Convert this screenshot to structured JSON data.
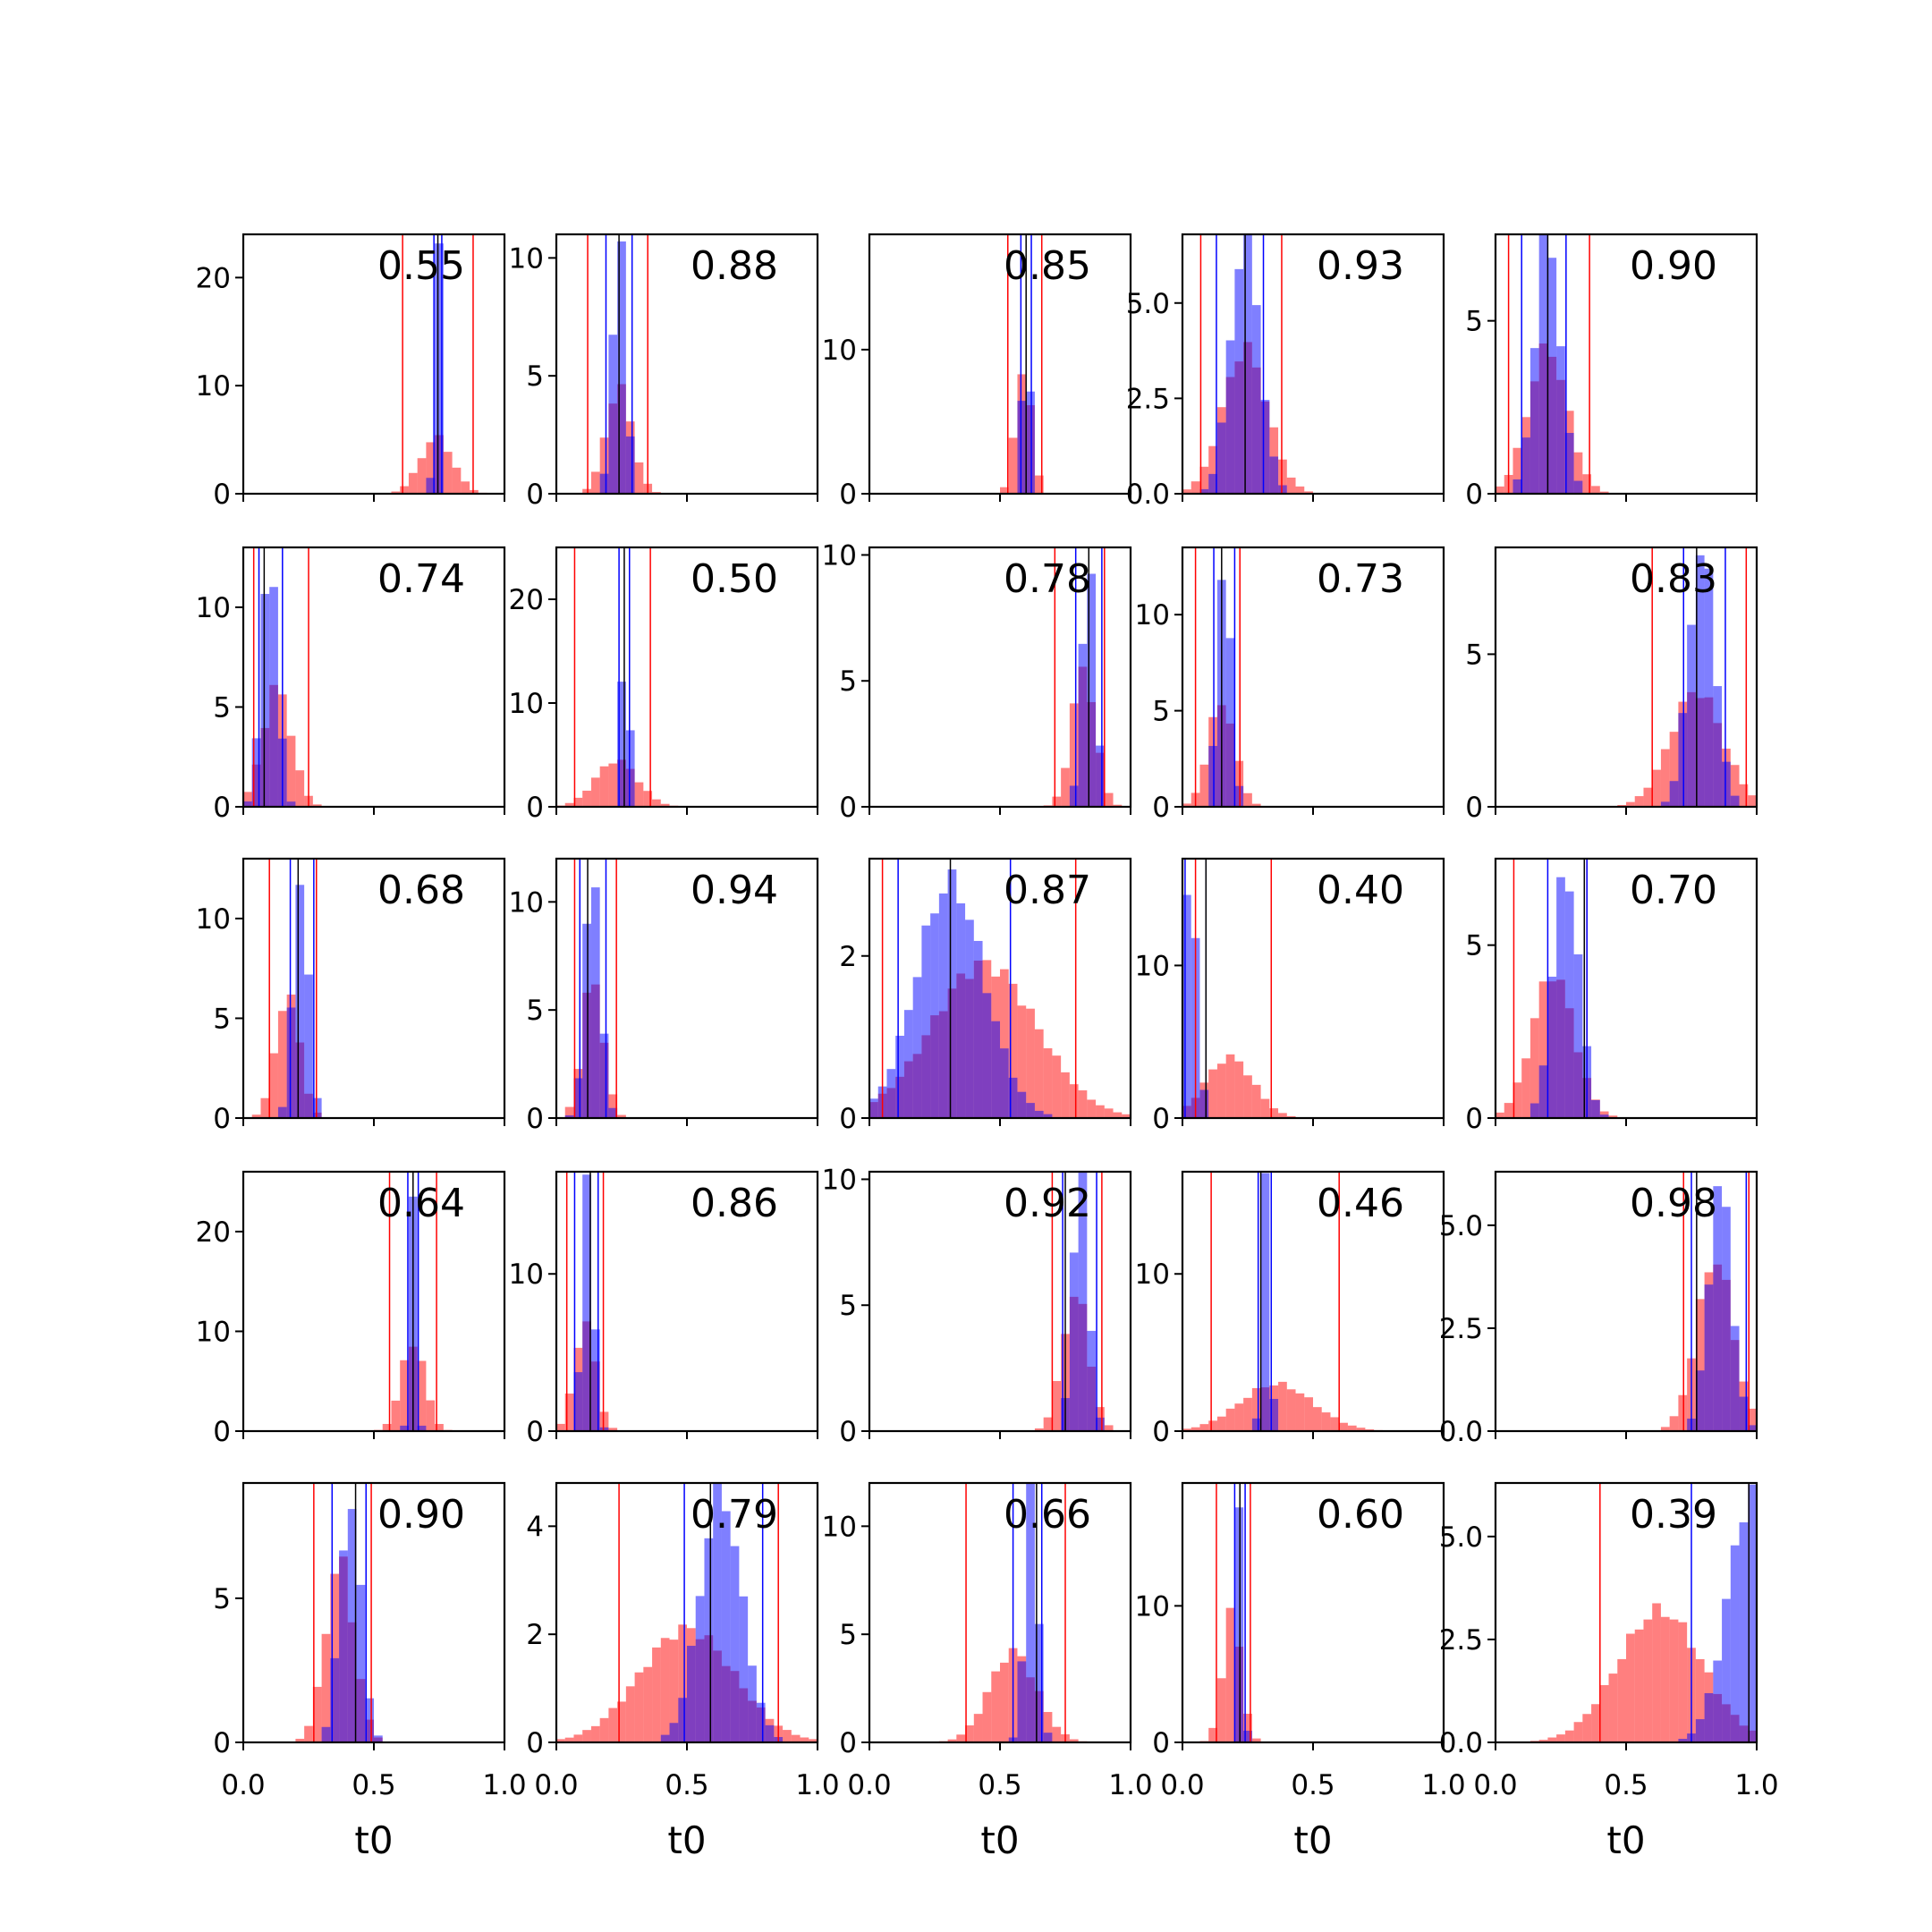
{
  "chart_data": {
    "type": "histogram-grid",
    "rows": 5,
    "cols": 5,
    "xlim": [
      0,
      1
    ],
    "x_ticks": [
      "0.0",
      "0.5",
      "1.0"
    ],
    "xlabel": "t0",
    "colors": {
      "red": "#ff0000",
      "blue": "#0000ff",
      "median": "#000000"
    },
    "panels": [
      {
        "label": "0.55",
        "ymax": 24,
        "yticks": [
          "0",
          "10",
          "20"
        ],
        "yvals": [
          0,
          10,
          20
        ],
        "red": {
          "mean": 0.74,
          "sd": 0.062,
          "peak": 5.2,
          "ci": [
            0.61,
            0.88
          ]
        },
        "blue": {
          "mean": 0.745,
          "sd": 0.012,
          "peak": 24,
          "ci": [
            0.73,
            0.76
          ]
        },
        "median": 0.745
      },
      {
        "label": "0.88",
        "ymax": 11,
        "yticks": [
          "0",
          "5",
          "10"
        ],
        "yvals": [
          0,
          5,
          10
        ],
        "red": {
          "mean": 0.24,
          "sd": 0.05,
          "peak": 4.5,
          "ci": [
            0.12,
            0.35
          ]
        },
        "blue": {
          "mean": 0.24,
          "sd": 0.025,
          "peak": 11,
          "ci": [
            0.19,
            0.29
          ]
        },
        "median": 0.24
      },
      {
        "label": "0.85",
        "ymax": 18,
        "yticks": [
          "0",
          "10"
        ],
        "yvals": [
          0,
          10
        ],
        "red": {
          "mean": 0.59,
          "sd": 0.03,
          "peak": 9,
          "ci": [
            0.53,
            0.66
          ]
        },
        "blue": {
          "mean": 0.6,
          "sd": 0.012,
          "peak": 18,
          "ci": [
            0.58,
            0.62
          ]
        },
        "median": 0.6
      },
      {
        "label": "0.93",
        "ymax": 6.8,
        "yticks": [
          "0.0",
          "2.5",
          "5.0"
        ],
        "yvals": [
          0,
          2.5,
          5
        ],
        "red": {
          "mean": 0.24,
          "sd": 0.085,
          "peak": 3.8,
          "ci": [
            0.07,
            0.38
          ]
        },
        "blue": {
          "mean": 0.24,
          "sd": 0.055,
          "peak": 6.8,
          "ci": [
            0.13,
            0.31
          ]
        },
        "median": 0.24
      },
      {
        "label": "0.90",
        "ymax": 7.5,
        "yticks": [
          "0",
          "5"
        ],
        "yvals": [
          0,
          5
        ],
        "red": {
          "mean": 0.2,
          "sd": 0.075,
          "peak": 4.2,
          "ci": [
            0.05,
            0.36
          ]
        },
        "blue": {
          "mean": 0.2,
          "sd": 0.048,
          "peak": 7.5,
          "ci": [
            0.1,
            0.27
          ]
        },
        "median": 0.2
      },
      {
        "label": "0.74",
        "ymax": 13,
        "yticks": [
          "0",
          "5",
          "10"
        ],
        "yvals": [
          0,
          5,
          10
        ],
        "red": {
          "mean": 0.13,
          "sd": 0.055,
          "peak": 6,
          "ci": [
            0.04,
            0.25
          ]
        },
        "blue": {
          "mean": 0.1,
          "sd": 0.03,
          "peak": 13,
          "ci": [
            0.06,
            0.15
          ]
        },
        "median": 0.08
      },
      {
        "label": "0.50",
        "ymax": 25,
        "yticks": [
          "0",
          "10",
          "20"
        ],
        "yvals": [
          0,
          10,
          20
        ],
        "red": {
          "mean": 0.23,
          "sd": 0.08,
          "peak": 4.5,
          "ci": [
            0.07,
            0.36
          ]
        },
        "blue": {
          "mean": 0.265,
          "sd": 0.012,
          "peak": 25,
          "ci": [
            0.24,
            0.28
          ]
        },
        "median": 0.26
      },
      {
        "label": "0.78",
        "ymax": 10.3,
        "yticks": [
          "0",
          "5",
          "10"
        ],
        "yvals": [
          0,
          5,
          10
        ],
        "red": {
          "mean": 0.82,
          "sd": 0.045,
          "peak": 5.5,
          "ci": [
            0.71,
            0.9
          ]
        },
        "blue": {
          "mean": 0.84,
          "sd": 0.025,
          "peak": 10.3,
          "ci": [
            0.79,
            0.89
          ]
        },
        "median": 0.84
      },
      {
        "label": "0.73",
        "ymax": 13.5,
        "yticks": [
          "0",
          "5",
          "10"
        ],
        "yvals": [
          0,
          5,
          10
        ],
        "red": {
          "mean": 0.15,
          "sd": 0.05,
          "peak": 5.5,
          "ci": [
            0.05,
            0.22
          ]
        },
        "blue": {
          "mean": 0.16,
          "sd": 0.025,
          "peak": 13.5,
          "ci": [
            0.12,
            0.2
          ]
        },
        "median": 0.15
      },
      {
        "label": "0.83",
        "ymax": 8.5,
        "yticks": [
          "0",
          "5"
        ],
        "yvals": [
          0,
          5
        ],
        "red": {
          "mean": 0.77,
          "sd": 0.1,
          "peak": 3.8,
          "ci": [
            0.6,
            0.96
          ]
        },
        "blue": {
          "mean": 0.79,
          "sd": 0.05,
          "peak": 8.5,
          "ci": [
            0.72,
            0.88
          ]
        },
        "median": 0.77
      },
      {
        "label": "0.68",
        "ymax": 13,
        "yticks": [
          "0",
          "5",
          "10"
        ],
        "yvals": [
          0,
          5,
          10
        ],
        "red": {
          "mean": 0.17,
          "sd": 0.045,
          "peak": 6.3,
          "ci": [
            0.1,
            0.28
          ]
        },
        "blue": {
          "mean": 0.22,
          "sd": 0.028,
          "peak": 12.5,
          "ci": [
            0.18,
            0.27
          ]
        },
        "median": 0.21
      },
      {
        "label": "0.94",
        "ymax": 12,
        "yticks": [
          "0",
          "5",
          "10"
        ],
        "yvals": [
          0,
          5,
          10
        ],
        "red": {
          "mean": 0.14,
          "sd": 0.04,
          "peak": 6.5,
          "ci": [
            0.07,
            0.23
          ]
        },
        "blue": {
          "mean": 0.14,
          "sd": 0.03,
          "peak": 11.5,
          "ci": [
            0.09,
            0.19
          ]
        },
        "median": 0.12
      },
      {
        "label": "0.87",
        "ymax": 3.2,
        "yticks": [
          "0",
          "2"
        ],
        "yvals": [
          0,
          2
        ],
        "red": {
          "mean": 0.44,
          "sd": 0.2,
          "peak": 1.9,
          "ci": [
            0.05,
            0.79
          ]
        },
        "blue": {
          "mean": 0.31,
          "sd": 0.13,
          "peak": 2.9,
          "ci": [
            0.11,
            0.54
          ]
        },
        "median": 0.31
      },
      {
        "label": "0.40",
        "ymax": 17,
        "yticks": [
          "0",
          "10"
        ],
        "yvals": [
          0,
          10
        ],
        "red": {
          "mean": 0.18,
          "sd": 0.09,
          "peak": 4,
          "ci": [
            0.05,
            0.34
          ]
        },
        "blue": {
          "mean": 0.03,
          "sd": 0.025,
          "peak": 17,
          "ci": [
            0.01,
            0.09
          ]
        },
        "median": 0.09
      },
      {
        "label": "0.70",
        "ymax": 7.5,
        "yticks": [
          "0",
          "5"
        ],
        "yvals": [
          0,
          5
        ],
        "red": {
          "mean": 0.22,
          "sd": 0.08,
          "peak": 4.2,
          "ci": [
            0.07,
            0.35
          ]
        },
        "blue": {
          "mean": 0.27,
          "sd": 0.05,
          "peak": 7.2,
          "ci": [
            0.2,
            0.35
          ]
        },
        "median": 0.34
      },
      {
        "label": "0.64",
        "ymax": 26,
        "yticks": [
          "0",
          "10",
          "20"
        ],
        "yvals": [
          0,
          10,
          20
        ],
        "red": {
          "mean": 0.65,
          "sd": 0.045,
          "peak": 9,
          "ci": [
            0.56,
            0.74
          ]
        },
        "blue": {
          "mean": 0.65,
          "sd": 0.012,
          "peak": 25,
          "ci": [
            0.63,
            0.67
          ]
        },
        "median": 0.65
      },
      {
        "label": "0.86",
        "ymax": 16.5,
        "yticks": [
          "0",
          "10"
        ],
        "yvals": [
          0,
          10
        ],
        "red": {
          "mean": 0.11,
          "sd": 0.04,
          "peak": 7,
          "ci": [
            0.04,
            0.18
          ]
        },
        "blue": {
          "mean": 0.12,
          "sd": 0.022,
          "peak": 16,
          "ci": [
            0.07,
            0.16
          ]
        },
        "median": 0.13
      },
      {
        "label": "0.92",
        "ymax": 10.3,
        "yticks": [
          "0",
          "5",
          "10"
        ],
        "yvals": [
          0,
          5,
          10
        ],
        "red": {
          "mean": 0.79,
          "sd": 0.05,
          "peak": 5.5,
          "ci": [
            0.7,
            0.89
          ]
        },
        "blue": {
          "mean": 0.81,
          "sd": 0.03,
          "peak": 10.3,
          "ci": [
            0.74,
            0.87
          ]
        },
        "median": 0.75
      },
      {
        "label": "0.46",
        "ymax": 16.5,
        "yticks": [
          "0",
          "10"
        ],
        "yvals": [
          0,
          10
        ],
        "red": {
          "mean": 0.36,
          "sd": 0.14,
          "peak": 3,
          "ci": [
            0.11,
            0.6
          ]
        },
        "blue": {
          "mean": 0.32,
          "sd": 0.015,
          "peak": 16,
          "ci": [
            0.29,
            0.34
          ]
        },
        "median": 0.3
      },
      {
        "label": "0.98",
        "ymax": 6.3,
        "yticks": [
          "0.0",
          "2.5",
          "5.0"
        ],
        "yvals": [
          0,
          2.5,
          5
        ],
        "red": {
          "mean": 0.84,
          "sd": 0.07,
          "peak": 4.2,
          "ci": [
            0.72,
            0.97
          ]
        },
        "blue": {
          "mean": 0.86,
          "sd": 0.045,
          "peak": 6,
          "ci": [
            0.75,
            0.96
          ]
        },
        "median": 0.77
      },
      {
        "label": "0.90",
        "ymax": 9,
        "yticks": [
          "0",
          "5"
        ],
        "yvals": [
          0,
          5
        ],
        "red": {
          "mean": 0.37,
          "sd": 0.055,
          "peak": 6.3,
          "ci": [
            0.27,
            0.49
          ]
        },
        "blue": {
          "mean": 0.41,
          "sd": 0.04,
          "peak": 8.5,
          "ci": [
            0.34,
            0.47
          ]
        },
        "median": 0.43
      },
      {
        "label": "0.79",
        "ymax": 4.8,
        "yticks": [
          "0",
          "2",
          "4"
        ],
        "yvals": [
          0,
          2,
          4
        ],
        "red": {
          "mean": 0.5,
          "sd": 0.18,
          "peak": 2.1,
          "ci": [
            0.24,
            0.85
          ]
        },
        "blue": {
          "mean": 0.63,
          "sd": 0.08,
          "peak": 4.6,
          "ci": [
            0.49,
            0.79
          ]
        },
        "median": 0.59
      },
      {
        "label": "0.66",
        "ymax": 12,
        "yticks": [
          "0",
          "5",
          "10"
        ],
        "yvals": [
          0,
          5,
          10
        ],
        "red": {
          "mean": 0.55,
          "sd": 0.09,
          "peak": 4.2,
          "ci": [
            0.37,
            0.75
          ]
        },
        "blue": {
          "mean": 0.62,
          "sd": 0.025,
          "peak": 11.5,
          "ci": [
            0.55,
            0.66
          ]
        },
        "median": 0.64
      },
      {
        "label": "0.60",
        "ymax": 19,
        "yticks": [
          "0",
          "10"
        ],
        "yvals": [
          0,
          10
        ],
        "red": {
          "mean": 0.19,
          "sd": 0.035,
          "peak": 9.5,
          "ci": [
            0.13,
            0.26
          ]
        },
        "blue": {
          "mean": 0.22,
          "sd": 0.012,
          "peak": 19,
          "ci": [
            0.2,
            0.24
          ]
        },
        "median": 0.22
      },
      {
        "label": "0.39",
        "ymax": 6.3,
        "yticks": [
          "0.0",
          "2.5",
          "5.0"
        ],
        "yvals": [
          0,
          2.5,
          5
        ],
        "red": {
          "mean": 0.63,
          "sd": 0.16,
          "peak": 3.2,
          "ci": [
            0.4,
            0.97
          ]
        },
        "blue": {
          "mean": 0.98,
          "sd": 0.09,
          "peak": 6,
          "ci": [
            0.75,
            1.0
          ]
        },
        "median": 0.97
      }
    ]
  }
}
